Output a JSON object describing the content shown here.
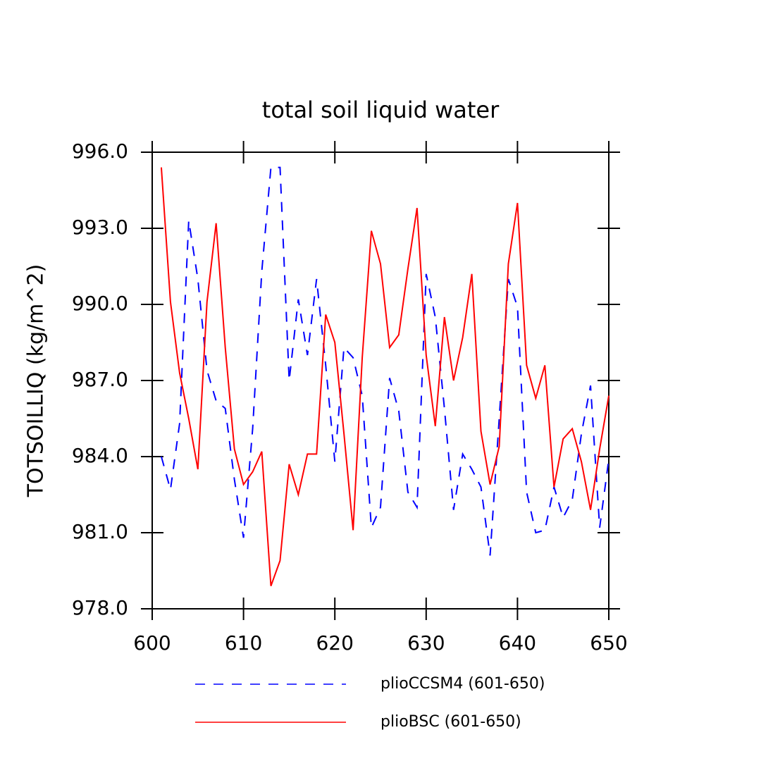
{
  "chart_data": {
    "type": "line",
    "title": "total soil liquid water",
    "y_label": "TOTSOILLIQ  (kg/m^2)",
    "x": [
      601,
      602,
      603,
      604,
      605,
      606,
      607,
      608,
      609,
      610,
      611,
      612,
      613,
      614,
      615,
      616,
      617,
      618,
      619,
      620,
      621,
      622,
      623,
      624,
      625,
      626,
      627,
      628,
      629,
      630,
      631,
      632,
      633,
      634,
      635,
      636,
      637,
      638,
      639,
      640,
      641,
      642,
      643,
      644,
      645,
      646,
      647,
      648,
      649,
      650
    ],
    "series": [
      {
        "name": "plioCCSM4 (601-650)",
        "color": "#0000ff",
        "style": "dashed",
        "values": [
          984.0,
          982.7,
          985.3,
          993.3,
          991.0,
          987.4,
          986.2,
          985.9,
          983.1,
          980.8,
          985.1,
          991.3,
          995.4,
          995.4,
          987.0,
          990.2,
          988.0,
          991.0,
          987.6,
          983.8,
          988.3,
          987.9,
          986.4,
          981.2,
          982.0,
          987.1,
          985.8,
          982.6,
          982.0,
          991.2,
          989.5,
          985.9,
          981.9,
          984.1,
          983.5,
          982.8,
          980.1,
          985.5,
          991.0,
          989.9,
          982.6,
          981.0,
          981.1,
          982.8,
          981.6,
          982.3,
          984.9,
          986.8,
          981.2,
          983.9
        ]
      },
      {
        "name": "plioBSC (601-650)",
        "color": "#ff0000",
        "style": "solid",
        "values": [
          995.4,
          990.1,
          987.3,
          985.5,
          983.5,
          990.1,
          993.2,
          988.3,
          984.3,
          982.9,
          983.4,
          984.2,
          978.9,
          979.9,
          983.7,
          982.5,
          984.1,
          984.1,
          989.6,
          988.5,
          984.9,
          981.1,
          987.9,
          992.9,
          991.6,
          988.3,
          988.8,
          991.4,
          993.8,
          988.0,
          985.2,
          989.5,
          987.0,
          988.7,
          991.2,
          985.0,
          982.9,
          984.4,
          991.6,
          994.0,
          987.6,
          986.3,
          987.6,
          982.8,
          984.7,
          985.1,
          983.8,
          981.9,
          984.3,
          986.4
        ]
      }
    ],
    "xlim": [
      600,
      650
    ],
    "xticks": [
      600,
      610,
      620,
      630,
      640,
      650
    ],
    "ylim": [
      978,
      996
    ],
    "yticks": [
      {
        "value": 978,
        "label": "978.0"
      },
      {
        "value": 981,
        "label": "981.0"
      },
      {
        "value": 984,
        "label": "984.0"
      },
      {
        "value": 987,
        "label": "987.0"
      },
      {
        "value": 990,
        "label": "990.0"
      },
      {
        "value": 993,
        "label": "993.0"
      },
      {
        "value": 996,
        "label": "996.0"
      }
    ],
    "grid": false
  }
}
